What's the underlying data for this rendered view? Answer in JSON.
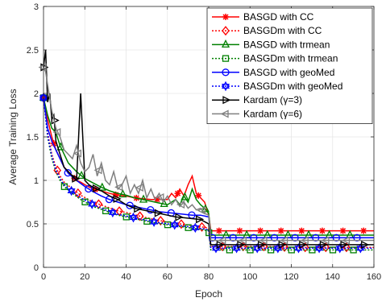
{
  "chart_data": {
    "type": "line",
    "title": "",
    "xlabel": "Epoch",
    "ylabel": "Average Training Loss",
    "xlim": [
      0,
      160
    ],
    "ylim": [
      0,
      3
    ],
    "xticks": [
      "0",
      "20",
      "40",
      "60",
      "80",
      "100",
      "120",
      "140",
      "160"
    ],
    "yticks": [
      "0",
      "0.5",
      "1",
      "1.5",
      "2",
      "2.5",
      "3"
    ],
    "grid": true,
    "legend_position": "top-right",
    "series": [
      {
        "name": "BASGD with CC",
        "color": "#ff0000",
        "dash": "solid",
        "marker": "star",
        "x": [
          0,
          2,
          4,
          6,
          8,
          10,
          12,
          14,
          16,
          18,
          20,
          24,
          28,
          32,
          36,
          40,
          44,
          48,
          52,
          56,
          60,
          62,
          64,
          66,
          68,
          70,
          72,
          74,
          76,
          78,
          80,
          81,
          90,
          100,
          110,
          120,
          130,
          140,
          150,
          160
        ],
        "y": [
          1.95,
          1.7,
          1.5,
          1.35,
          1.25,
          1.15,
          1.1,
          1.05,
          1.0,
          0.98,
          0.95,
          0.9,
          0.88,
          0.85,
          0.83,
          0.82,
          0.8,
          0.79,
          0.78,
          0.78,
          0.78,
          0.85,
          0.8,
          0.9,
          0.82,
          0.95,
          1.05,
          0.85,
          0.8,
          0.75,
          0.6,
          0.42,
          0.42,
          0.42,
          0.42,
          0.42,
          0.42,
          0.42,
          0.42,
          0.42
        ]
      },
      {
        "name": "BASGDm with CC",
        "color": "#ff0000",
        "dash": "dot",
        "marker": "diamond",
        "x": [
          0,
          2,
          4,
          6,
          8,
          10,
          14,
          18,
          24,
          30,
          36,
          42,
          48,
          54,
          60,
          66,
          72,
          78,
          80,
          81,
          90,
          100,
          110,
          120,
          130,
          140,
          150,
          160
        ],
        "y": [
          1.95,
          1.55,
          1.3,
          1.15,
          1.05,
          0.98,
          0.9,
          0.83,
          0.75,
          0.7,
          0.65,
          0.62,
          0.58,
          0.55,
          0.52,
          0.5,
          0.48,
          0.46,
          0.45,
          0.24,
          0.24,
          0.24,
          0.24,
          0.23,
          0.23,
          0.23,
          0.23,
          0.23
        ]
      },
      {
        "name": "BASGD with trmean",
        "color": "#008000",
        "dash": "solid",
        "marker": "triangle",
        "x": [
          0,
          2,
          4,
          6,
          8,
          10,
          12,
          16,
          20,
          24,
          28,
          32,
          36,
          40,
          44,
          48,
          52,
          56,
          60,
          64,
          66,
          68,
          70,
          72,
          74,
          76,
          78,
          80,
          81,
          90,
          100,
          110,
          120,
          130,
          140,
          150,
          160
        ],
        "y": [
          1.95,
          1.75,
          1.6,
          1.55,
          1.4,
          1.3,
          1.2,
          1.1,
          1.02,
          0.97,
          0.92,
          0.88,
          0.85,
          0.83,
          0.8,
          0.78,
          0.76,
          0.74,
          0.72,
          0.78,
          0.72,
          0.82,
          0.75,
          0.9,
          0.78,
          0.72,
          0.68,
          0.62,
          0.37,
          0.37,
          0.37,
          0.37,
          0.37,
          0.37,
          0.37,
          0.37,
          0.37
        ]
      },
      {
        "name": "BASGDm with trmean",
        "color": "#008000",
        "dash": "dot",
        "marker": "square",
        "x": [
          0,
          2,
          4,
          6,
          8,
          10,
          14,
          18,
          24,
          30,
          36,
          42,
          48,
          54,
          60,
          66,
          72,
          78,
          80,
          81,
          90,
          100,
          110,
          120,
          130,
          140,
          150,
          160
        ],
        "y": [
          1.95,
          1.5,
          1.25,
          1.1,
          1.0,
          0.93,
          0.85,
          0.78,
          0.7,
          0.65,
          0.6,
          0.57,
          0.54,
          0.51,
          0.49,
          0.47,
          0.45,
          0.43,
          0.42,
          0.2,
          0.2,
          0.2,
          0.2,
          0.2,
          0.2,
          0.2,
          0.2,
          0.2
        ]
      },
      {
        "name": "BASGD with geoMed",
        "color": "#0000ff",
        "dash": "solid",
        "marker": "circle",
        "x": [
          0,
          2,
          4,
          6,
          8,
          10,
          12,
          16,
          20,
          24,
          28,
          32,
          36,
          40,
          44,
          48,
          52,
          56,
          60,
          64,
          68,
          72,
          76,
          80,
          81,
          90,
          100,
          110,
          120,
          130,
          140,
          150,
          160
        ],
        "y": [
          1.95,
          1.6,
          1.45,
          1.35,
          1.25,
          1.15,
          1.08,
          1.0,
          0.93,
          0.87,
          0.82,
          0.78,
          0.75,
          0.72,
          0.7,
          0.68,
          0.66,
          0.64,
          0.63,
          0.62,
          0.61,
          0.6,
          0.6,
          0.58,
          0.34,
          0.34,
          0.34,
          0.34,
          0.34,
          0.34,
          0.34,
          0.34,
          0.34
        ]
      },
      {
        "name": "BASGDm with geoMed",
        "color": "#0000ff",
        "dash": "dot",
        "marker": "hexagram",
        "x": [
          0,
          2,
          4,
          6,
          8,
          10,
          14,
          18,
          24,
          30,
          36,
          42,
          48,
          54,
          60,
          66,
          72,
          78,
          80,
          81,
          90,
          100,
          110,
          120,
          130,
          140,
          150,
          160
        ],
        "y": [
          1.95,
          1.52,
          1.28,
          1.12,
          1.02,
          0.95,
          0.87,
          0.8,
          0.72,
          0.66,
          0.61,
          0.58,
          0.55,
          0.52,
          0.5,
          0.48,
          0.46,
          0.44,
          0.43,
          0.22,
          0.22,
          0.22,
          0.22,
          0.22,
          0.22,
          0.22,
          0.22,
          0.22
        ]
      },
      {
        "name": "Kardam (γ=3)",
        "color": "#000000",
        "dash": "solid",
        "marker": "tri-right",
        "x": [
          0,
          1,
          2,
          3,
          4,
          5,
          6,
          8,
          10,
          12,
          14,
          16,
          18,
          20,
          22,
          24,
          26,
          28,
          30,
          32,
          34,
          36,
          40,
          44,
          48,
          52,
          56,
          60,
          64,
          68,
          72,
          76,
          80,
          81,
          90,
          100,
          110,
          120,
          130,
          140,
          150,
          160
        ],
        "y": [
          2.3,
          2.5,
          1.9,
          2.0,
          1.7,
          1.75,
          1.45,
          1.3,
          1.15,
          1.1,
          1.05,
          1.0,
          2.0,
          1.0,
          0.95,
          0.92,
          0.9,
          0.88,
          0.85,
          0.82,
          0.8,
          0.78,
          0.72,
          0.68,
          0.66,
          0.64,
          0.62,
          0.6,
          0.58,
          0.57,
          0.56,
          0.55,
          0.5,
          0.26,
          0.26,
          0.26,
          0.26,
          0.26,
          0.26,
          0.26,
          0.26,
          0.26
        ]
      },
      {
        "name": "Kardam (γ=6)",
        "color": "#808080",
        "dash": "solid",
        "marker": "tri-left",
        "x": [
          0,
          1,
          2,
          4,
          6,
          8,
          10,
          12,
          14,
          16,
          18,
          20,
          22,
          24,
          26,
          28,
          30,
          32,
          34,
          36,
          38,
          40,
          42,
          44,
          46,
          48,
          50,
          52,
          54,
          56,
          58,
          60,
          62,
          64,
          66,
          68,
          70,
          72,
          74,
          76,
          78,
          80,
          81,
          90,
          100,
          110,
          120,
          130,
          140,
          150,
          160
        ],
        "y": [
          2.3,
          2.25,
          2.1,
          1.8,
          1.6,
          1.5,
          1.35,
          1.3,
          1.25,
          1.4,
          1.2,
          1.1,
          1.15,
          1.3,
          1.05,
          1.2,
          1.0,
          0.95,
          1.1,
          0.9,
          0.95,
          1.05,
          0.85,
          0.95,
          0.85,
          1.0,
          0.8,
          0.9,
          0.78,
          0.85,
          0.75,
          0.82,
          0.72,
          0.78,
          0.7,
          0.75,
          0.68,
          0.72,
          0.66,
          0.68,
          0.62,
          0.6,
          0.31,
          0.31,
          0.31,
          0.31,
          0.31,
          0.31,
          0.31,
          0.31,
          0.31
        ]
      }
    ]
  }
}
